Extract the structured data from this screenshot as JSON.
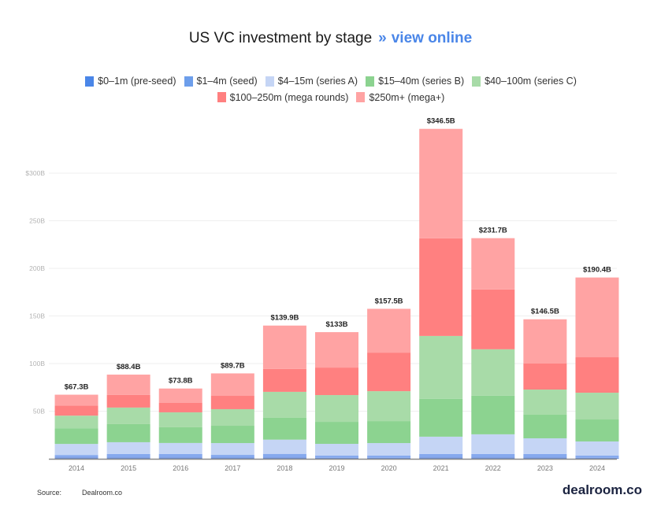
{
  "header": {
    "title": "US VC investment by stage",
    "separator": "»",
    "link_label": "view online",
    "link_color": "#4a86e8"
  },
  "footer": {
    "source_label": "Source:",
    "source_value": "Dealroom.co",
    "brand": "dealroom.co"
  },
  "chart_data": {
    "type": "bar",
    "stacked": true,
    "title": "US VC investment by stage",
    "xlabel": "",
    "ylabel": "",
    "ylim": [
      0,
      350
    ],
    "yticks": [
      50,
      100,
      150,
      200,
      250,
      300
    ],
    "ytick_labels": [
      "50B",
      "100B",
      "150B",
      "200B",
      "250B",
      "$300B"
    ],
    "grid": true,
    "legend_position": "top-center",
    "categories": [
      "2014",
      "2015",
      "2016",
      "2017",
      "2018",
      "2019",
      "2020",
      "2021",
      "2022",
      "2023",
      "2024"
    ],
    "totals": [
      67.3,
      88.4,
      73.8,
      89.7,
      139.9,
      133,
      157.5,
      346.5,
      231.7,
      146.5,
      190.4
    ],
    "total_labels": [
      "$67.3B",
      "$88.4B",
      "$73.8B",
      "$89.7B",
      "$139.9B",
      "$133B",
      "$157.5B",
      "$346.5B",
      "$231.7B",
      "$146.5B",
      "$190.4B"
    ],
    "series": [
      {
        "name": "$0–1m (pre-seed)",
        "color": "#6d8fd6",
        "values": [
          1.5,
          1.5,
          1.5,
          1.3,
          1.5,
          1.0,
          1.0,
          1.5,
          1.5,
          1.5,
          1.0
        ]
      },
      {
        "name": "$1–4m (seed)",
        "color": "#86a9ee",
        "values": [
          2.5,
          3.5,
          3.5,
          2.8,
          3.7,
          2.3,
          2.3,
          3.5,
          3.5,
          3.5,
          2.3
        ]
      },
      {
        "name": "$4–15m (series A)",
        "color": "#c5d5f5",
        "values": [
          11.6,
          12.4,
          11.6,
          12.4,
          14.9,
          12.4,
          13.2,
          18.2,
          20.7,
          16.5,
          14.9
        ]
      },
      {
        "name": "$15–40m (series B)",
        "color": "#8cd390",
        "values": [
          16.5,
          19.0,
          16.5,
          18.2,
          22.9,
          23.1,
          23.1,
          39.7,
          40.5,
          24.8,
          23.1
        ]
      },
      {
        "name": "$40–100m (series C)",
        "color": "#a8dba8",
        "values": [
          13.2,
          17.4,
          15.7,
          17.4,
          27.3,
          28.1,
          31.4,
          66.1,
          48.8,
          26.4,
          28.1
        ]
      },
      {
        "name": "$100–250m (mega rounds)",
        "color": "#ff8080",
        "values": [
          10.7,
          13.2,
          9.9,
          14.0,
          24.0,
          28.9,
          40.5,
          102.5,
          62.8,
          27.3,
          37.2
        ]
      },
      {
        "name": "$250m+ (mega+)",
        "color": "#ffa3a3",
        "values": [
          11.3,
          21.4,
          15.1,
          23.6,
          45.6,
          37.2,
          46.0,
          115.0,
          53.9,
          46.5,
          83.8
        ]
      }
    ]
  }
}
